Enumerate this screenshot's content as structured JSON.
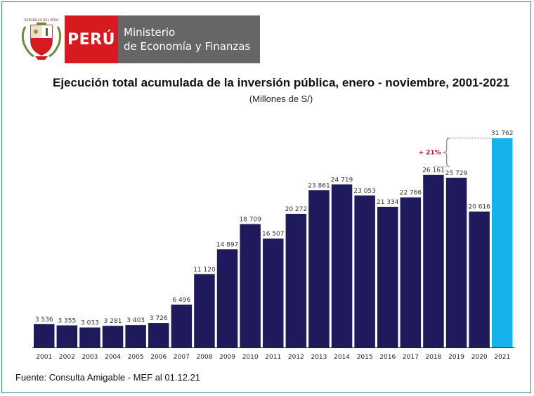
{
  "header": {
    "shield_text": "REPÚBLICA DEL PERÚ",
    "brand": "PERÚ",
    "ministry_line1": "Ministerio",
    "ministry_line2": "de Economía y Finanzas"
  },
  "chart_data": {
    "type": "bar",
    "title": "Ejecución total acumulada de la inversión pública, enero - noviembre, 2001-2021",
    "subtitle": "(Millones de S/)",
    "categories": [
      "2001",
      "2002",
      "2003",
      "2004",
      "2005",
      "2006",
      "2007",
      "2008",
      "2009",
      "2010",
      "2011",
      "2012",
      "2013",
      "2014",
      "2015",
      "2016",
      "2017",
      "2018",
      "2019",
      "2020",
      "2021"
    ],
    "values": [
      3536,
      3355,
      3033,
      3281,
      3403,
      3726,
      6496,
      11120,
      14897,
      18709,
      16507,
      20272,
      23861,
      24719,
      23053,
      21334,
      22766,
      26161,
      25729,
      20616,
      31762
    ],
    "value_labels": [
      "3 536",
      "3 355",
      "3 033",
      "3 281",
      "3 403",
      "3 726",
      "6 496",
      "11 120",
      "14 897",
      "18 709",
      "16 507",
      "20 272",
      "23 861",
      "24 719",
      "23 053",
      "21 334",
      "22 766",
      "26 161",
      "25 729",
      "20 616",
      "31 762"
    ],
    "colors": {
      "default": "#1f1a5c",
      "highlight": "#14b3ec",
      "annotation": "#d71920"
    },
    "highlight_category": "2021",
    "annotation": {
      "text": "+ 21%",
      "from": "2018",
      "to": "2021"
    },
    "ylim": [
      0,
      32000
    ],
    "grid": false,
    "xlabel": "",
    "ylabel": ""
  },
  "footer": {
    "source": "Fuente: Consulta Amigable - MEF al 01.12.21"
  }
}
